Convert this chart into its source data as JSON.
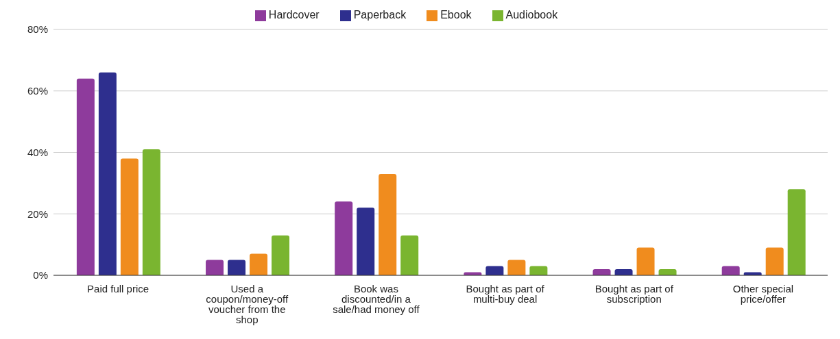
{
  "chart_data": {
    "type": "bar",
    "categories": [
      "Paid full price",
      "Used a coupon/money-off voucher from the shop",
      "Book was discounted/in a sale/had money off",
      "Bought as part of multi-buy deal",
      "Bought as part of subscription",
      "Other special price/offer"
    ],
    "series": [
      {
        "name": "Hardcover",
        "color": "#8e3b9c",
        "values": [
          64,
          5,
          24,
          1,
          2,
          3
        ]
      },
      {
        "name": "Paperback",
        "color": "#2e2f8e",
        "values": [
          66,
          5,
          22,
          3,
          2,
          1
        ]
      },
      {
        "name": "Ebook",
        "color": "#f08c1e",
        "values": [
          38,
          7,
          33,
          5,
          9,
          9
        ]
      },
      {
        "name": "Audiobook",
        "color": "#7ab530",
        "values": [
          41,
          13,
          13,
          3,
          2,
          28
        ]
      }
    ],
    "ylim": [
      0,
      80
    ],
    "yticks": [
      {
        "value": 0,
        "label": "0%"
      },
      {
        "value": 20,
        "label": "20%"
      },
      {
        "value": 40,
        "label": "40%"
      },
      {
        "value": 60,
        "label": "60%"
      },
      {
        "value": 80,
        "label": "80%"
      }
    ],
    "grid": "y",
    "legend": "top"
  }
}
